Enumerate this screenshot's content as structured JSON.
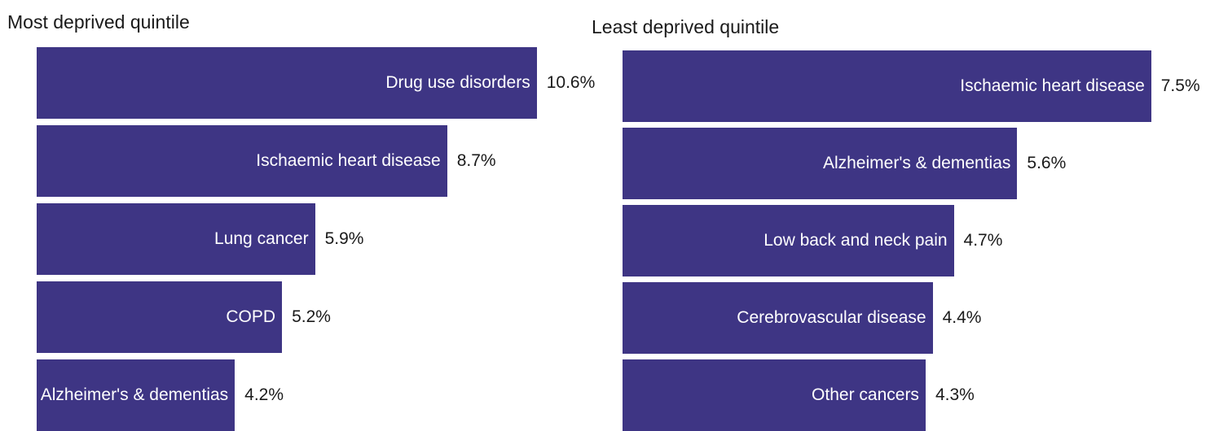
{
  "chart_data": [
    {
      "type": "bar",
      "orientation": "horizontal",
      "title": "Most deprived quintile",
      "categories": [
        "Drug use disorders",
        "Ischaemic heart disease",
        "Lung cancer",
        "COPD",
        "Alzheimer's & dementias"
      ],
      "values": [
        10.6,
        8.7,
        5.9,
        5.2,
        4.2
      ],
      "value_labels": [
        "10.6%",
        "8.7%",
        "5.9%",
        "5.2%",
        "4.2%"
      ],
      "unit": "%",
      "bar_color": "#3e3584",
      "grid": false,
      "legend": "none"
    },
    {
      "type": "bar",
      "orientation": "horizontal",
      "title": "Least deprived quintile",
      "categories": [
        "Ischaemic heart disease",
        "Alzheimer's & dementias",
        "Low back and neck pain",
        "Cerebrovascular disease",
        "Other cancers"
      ],
      "values": [
        7.5,
        5.6,
        4.7,
        4.4,
        4.3
      ],
      "value_labels": [
        "7.5%",
        "5.6%",
        "4.7%",
        "4.4%",
        "4.3%"
      ],
      "unit": "%",
      "bar_color": "#3e3584",
      "grid": false,
      "legend": "none"
    }
  ]
}
